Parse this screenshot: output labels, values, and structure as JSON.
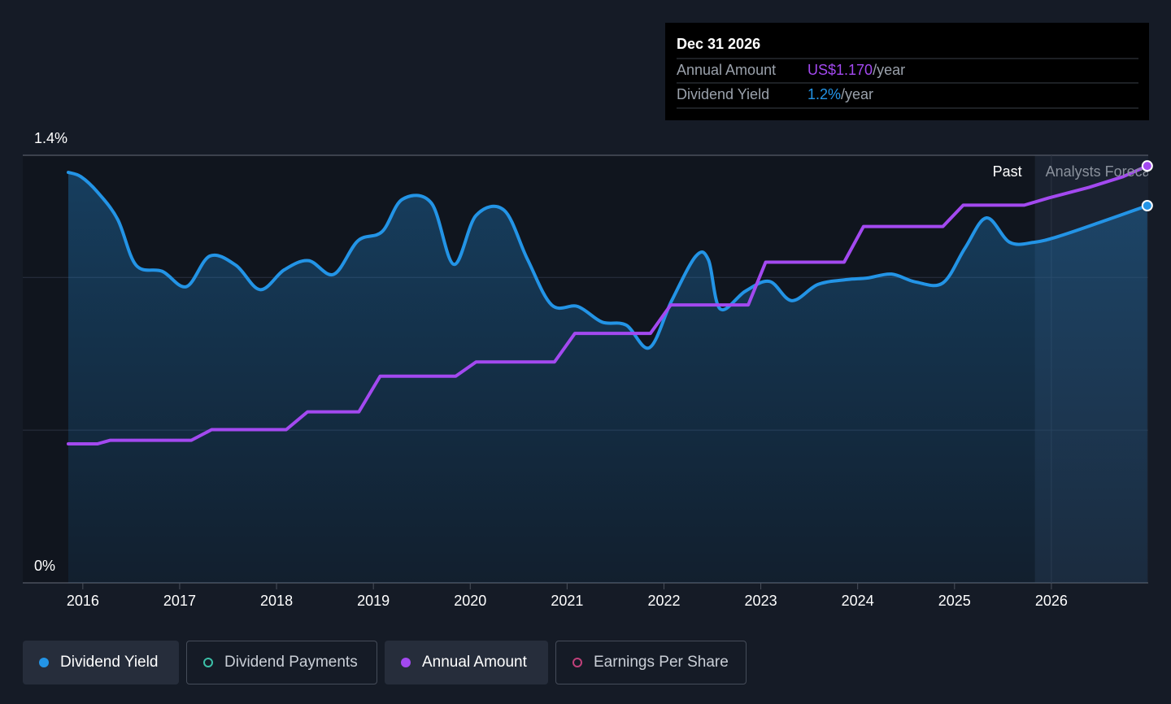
{
  "chart_data": {
    "type": "line",
    "xlim": [
      2015.38,
      2027.0
    ],
    "xticks": [
      2016,
      2017,
      2018,
      2019,
      2020,
      2021,
      2022,
      2023,
      2024,
      2025,
      2026
    ],
    "ylim": [
      0,
      1.4
    ],
    "yticks": [
      {
        "value": 0,
        "label": "0%"
      },
      {
        "value": 1.4,
        "label": "1.4%"
      }
    ],
    "gridlines": [
      0.5,
      1.0
    ],
    "y2lim": [
      0,
      1.2
    ],
    "forecast_start": 2025.83,
    "past_label": "Past",
    "forecast_label": "Analysts Forecasts",
    "series": [
      {
        "name": "Dividend Yield",
        "color": "#2394e6",
        "x": [
          2015.85,
          2015.98,
          2016.15,
          2016.36,
          2016.55,
          2016.82,
          2017.07,
          2017.31,
          2017.58,
          2017.83,
          2018.08,
          2018.33,
          2018.59,
          2018.84,
          2019.09,
          2019.3,
          2019.6,
          2019.83,
          2020.06,
          2020.35,
          2020.59,
          2020.84,
          2021.11,
          2021.36,
          2021.61,
          2021.85,
          2022.08,
          2022.33,
          2022.46,
          2022.58,
          2022.84,
          2023.09,
          2023.32,
          2023.59,
          2023.89,
          2024.1,
          2024.35,
          2024.6,
          2024.88,
          2025.11,
          2025.33,
          2025.57,
          2025.82,
          2026.07,
          2026.49,
          2026.99
        ],
        "values": [
          1.344,
          1.33,
          1.28,
          1.19,
          1.04,
          1.02,
          0.97,
          1.07,
          1.04,
          0.96,
          1.025,
          1.055,
          1.01,
          1.12,
          1.15,
          1.256,
          1.243,
          1.043,
          1.203,
          1.22,
          1.06,
          0.91,
          0.905,
          0.854,
          0.844,
          0.77,
          0.924,
          1.07,
          1.057,
          0.897,
          0.955,
          0.987,
          0.924,
          0.977,
          0.993,
          0.998,
          1.011,
          0.985,
          0.982,
          1.097,
          1.195,
          1.115,
          1.115,
          1.134,
          1.179,
          1.235
        ]
      },
      {
        "name": "Annual Amount",
        "color": "#a349f0",
        "axis": "y2",
        "x": [
          2015.85,
          2016.15,
          2016.28,
          2017.12,
          2017.33,
          2018.1,
          2018.32,
          2018.85,
          2019.07,
          2019.85,
          2020.06,
          2020.87,
          2021.08,
          2021.86,
          2022.07,
          2022.87,
          2023.05,
          2023.86,
          2024.06,
          2024.88,
          2025.09,
          2025.72,
          2025.97,
          2026.39,
          2026.74,
          2026.99
        ],
        "values": [
          0.39,
          0.39,
          0.4,
          0.4,
          0.43,
          0.43,
          0.48,
          0.48,
          0.58,
          0.58,
          0.62,
          0.62,
          0.7,
          0.7,
          0.78,
          0.78,
          0.9,
          0.9,
          1.0,
          1.0,
          1.06,
          1.06,
          1.08,
          1.11,
          1.14,
          1.17
        ]
      }
    ],
    "inactive_series": [
      {
        "name": "Dividend Payments",
        "color": "#3cc0a8"
      },
      {
        "name": "Earnings Per Share",
        "color": "#c0407a"
      }
    ]
  },
  "tooltip": {
    "title": "Dec 31 2026",
    "rows": [
      {
        "label": "Annual Amount",
        "value": "US$1.170",
        "unit": "/year",
        "color": "#a349f0"
      },
      {
        "label": "Dividend Yield",
        "value": "1.2%",
        "unit": "/year",
        "color": "#2394e6"
      }
    ]
  }
}
